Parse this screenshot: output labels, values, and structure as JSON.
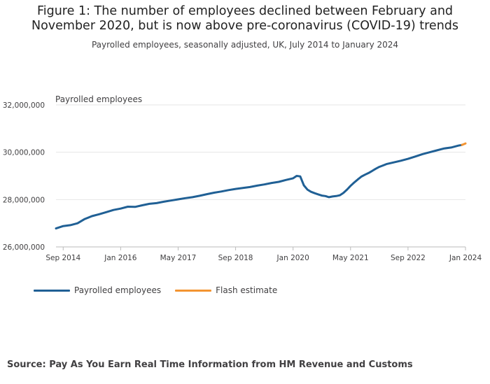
{
  "title_line1": "Figure 1: The number of employees declined between February and",
  "title_line2": "November 2020, but is now above pre-coronavirus (COVID-19) trends",
  "subtitle": "Payrolled employees, seasonally adjusted, UK, July 2014 to January 2024",
  "source": "Source: Pay As You Earn Real Time Information from HM Revenue and Customs",
  "colors": {
    "main": "#206095",
    "flash": "#f39431",
    "grid": "#e6e6e6",
    "axis": "#bbbbbb"
  },
  "chart_data": {
    "type": "line",
    "ylabel": "Payrolled employees",
    "ylim": [
      26000000,
      32000000
    ],
    "yticks": [
      26000000,
      28000000,
      30000000,
      32000000
    ],
    "ytick_labels": [
      "26,000,000",
      "28,000,000",
      "30,000,000",
      "32,000,000"
    ],
    "xlim": [
      "2014-07",
      "2024-01"
    ],
    "xticks": [
      "2014-09",
      "2016-01",
      "2017-05",
      "2018-09",
      "2020-01",
      "2021-05",
      "2022-09",
      "2024-01"
    ],
    "xtick_labels": [
      "Sep 2014",
      "Jan 2016",
      "May 2017",
      "Sep 2018",
      "Jan 2020",
      "May 2021",
      "Sep 2022",
      "Jan 2024"
    ],
    "legend_position": "bottom-left",
    "series": [
      {
        "name": "Payrolled employees",
        "points": [
          [
            "2014-07",
            26780000
          ],
          [
            "2014-09",
            26880000
          ],
          [
            "2014-11",
            26920000
          ],
          [
            "2015-01",
            27000000
          ],
          [
            "2015-03",
            27180000
          ],
          [
            "2015-05",
            27300000
          ],
          [
            "2015-07",
            27380000
          ],
          [
            "2015-09",
            27470000
          ],
          [
            "2015-11",
            27560000
          ],
          [
            "2016-01",
            27620000
          ],
          [
            "2016-03",
            27700000
          ],
          [
            "2016-05",
            27690000
          ],
          [
            "2016-07",
            27760000
          ],
          [
            "2016-09",
            27820000
          ],
          [
            "2016-11",
            27850000
          ],
          [
            "2017-01",
            27910000
          ],
          [
            "2017-03",
            27960000
          ],
          [
            "2017-05",
            28010000
          ],
          [
            "2017-07",
            28060000
          ],
          [
            "2017-09",
            28100000
          ],
          [
            "2017-11",
            28160000
          ],
          [
            "2018-01",
            28230000
          ],
          [
            "2018-03",
            28290000
          ],
          [
            "2018-05",
            28340000
          ],
          [
            "2018-07",
            28400000
          ],
          [
            "2018-09",
            28450000
          ],
          [
            "2018-11",
            28490000
          ],
          [
            "2019-01",
            28530000
          ],
          [
            "2019-03",
            28590000
          ],
          [
            "2019-05",
            28640000
          ],
          [
            "2019-07",
            28700000
          ],
          [
            "2019-09",
            28750000
          ],
          [
            "2019-11",
            28830000
          ],
          [
            "2020-01",
            28900000
          ],
          [
            "2020-02",
            29000000
          ],
          [
            "2020-03",
            28980000
          ],
          [
            "2020-04",
            28600000
          ],
          [
            "2020-05",
            28420000
          ],
          [
            "2020-06",
            28330000
          ],
          [
            "2020-07",
            28270000
          ],
          [
            "2020-08",
            28220000
          ],
          [
            "2020-09",
            28170000
          ],
          [
            "2020-10",
            28150000
          ],
          [
            "2020-11",
            28100000
          ],
          [
            "2020-12",
            28130000
          ],
          [
            "2021-01",
            28150000
          ],
          [
            "2021-02",
            28180000
          ],
          [
            "2021-03",
            28280000
          ],
          [
            "2021-04",
            28420000
          ],
          [
            "2021-05",
            28580000
          ],
          [
            "2021-06",
            28720000
          ],
          [
            "2021-07",
            28850000
          ],
          [
            "2021-08",
            28970000
          ],
          [
            "2021-09",
            29050000
          ],
          [
            "2021-10",
            29120000
          ],
          [
            "2021-11",
            29210000
          ],
          [
            "2021-12",
            29300000
          ],
          [
            "2022-01",
            29380000
          ],
          [
            "2022-02",
            29440000
          ],
          [
            "2022-03",
            29500000
          ],
          [
            "2022-05",
            29570000
          ],
          [
            "2022-07",
            29640000
          ],
          [
            "2022-09",
            29720000
          ],
          [
            "2022-11",
            29820000
          ],
          [
            "2023-01",
            29920000
          ],
          [
            "2023-03",
            30000000
          ],
          [
            "2023-05",
            30080000
          ],
          [
            "2023-07",
            30160000
          ],
          [
            "2023-09",
            30200000
          ],
          [
            "2023-11",
            30280000
          ],
          [
            "2023-12",
            30310000
          ]
        ]
      },
      {
        "name": "Flash estimate",
        "points": [
          [
            "2023-12",
            30310000
          ],
          [
            "2024-01",
            30370000
          ]
        ]
      }
    ]
  }
}
